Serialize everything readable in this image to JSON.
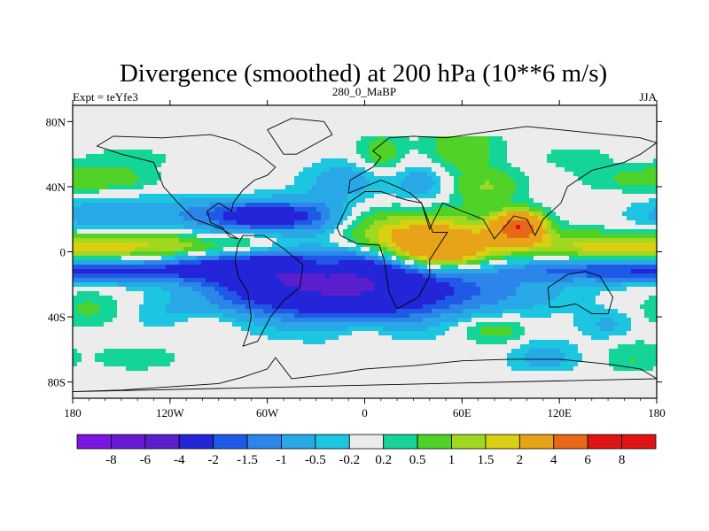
{
  "chart_data": {
    "type": "heatmap",
    "title": "Divergence (smoothed) at 200 hPa (10**6 m/s)",
    "subtitle_left": "Expt = teYfe3",
    "subtitle_center": "280_0_MaBP",
    "subtitle_right": "JJA",
    "x_ticks": [
      {
        "value": -180,
        "label": "180"
      },
      {
        "value": -120,
        "label": "120W"
      },
      {
        "value": -60,
        "label": "60W"
      },
      {
        "value": 0,
        "label": "0"
      },
      {
        "value": 60,
        "label": "60E"
      },
      {
        "value": 120,
        "label": "120E"
      },
      {
        "value": 180,
        "label": "180"
      }
    ],
    "y_ticks": [
      {
        "value": 80,
        "label": "80N"
      },
      {
        "value": 40,
        "label": "40N"
      },
      {
        "value": 0,
        "label": "0"
      },
      {
        "value": -40,
        "label": "40S"
      },
      {
        "value": -80,
        "label": "80S"
      }
    ],
    "xlim": [
      -180,
      180
    ],
    "ylim": [
      -90,
      90
    ],
    "colorbar": {
      "colors": [
        "#7a16e0",
        "#6a1ad6",
        "#5a1ecc",
        "#2424d8",
        "#1e5ae6",
        "#2c86ea",
        "#28a8e6",
        "#1cc6e0",
        "#ececec",
        "#14d498",
        "#50d228",
        "#a0d820",
        "#d8d010",
        "#e8a418",
        "#e86818",
        "#e01414",
        "#e01414"
      ],
      "labels": [
        "-8",
        "-6",
        "-4",
        "-2",
        "-1.5",
        "-1",
        "-0.5",
        "-0.2",
        "0.2",
        "0.5",
        "1",
        "1.5",
        "2",
        "4",
        "6",
        "8"
      ]
    },
    "features": [
      {
        "lon": -110,
        "lat": 3,
        "value": 1.5,
        "sx": 55,
        "sy": 6
      },
      {
        "lon": 150,
        "lat": 3,
        "value": 1.5,
        "sx": 45,
        "sy": 6
      },
      {
        "lon": -150,
        "lat": -12,
        "value": -1.5,
        "sx": 40,
        "sy": 5
      },
      {
        "lon": 140,
        "lat": -11,
        "value": -1.5,
        "sx": 45,
        "sy": 5
      },
      {
        "lon": -120,
        "lat": 23,
        "value": -0.8,
        "sx": 35,
        "sy": 8
      },
      {
        "lon": -170,
        "lat": 22,
        "value": -0.5,
        "sx": 20,
        "sy": 8
      },
      {
        "lon": -65,
        "lat": 22,
        "value": -2.5,
        "sx": 22,
        "sy": 6
      },
      {
        "lon": -30,
        "lat": 20,
        "value": -1.2,
        "sx": 18,
        "sy": 10
      },
      {
        "lon": -50,
        "lat": -18,
        "value": -3.0,
        "sx": 35,
        "sy": 14
      },
      {
        "lon": 5,
        "lat": -20,
        "value": -3.0,
        "sx": 35,
        "sy": 16
      },
      {
        "lon": -90,
        "lat": -8,
        "value": -1.4,
        "sx": 30,
        "sy": 6
      },
      {
        "lon": 70,
        "lat": -25,
        "value": -1.0,
        "sx": 40,
        "sy": 10
      },
      {
        "lon": -155,
        "lat": 45,
        "value": 0.6,
        "sx": 20,
        "sy": 6
      },
      {
        "lon": 170,
        "lat": 45,
        "value": 0.6,
        "sx": 25,
        "sy": 6
      },
      {
        "lon": -145,
        "lat": 58,
        "value": 0.4,
        "sx": 18,
        "sy": 4
      },
      {
        "lon": 130,
        "lat": 58,
        "value": 0.4,
        "sx": 15,
        "sy": 5
      },
      {
        "lon": -10,
        "lat": 45,
        "value": -0.8,
        "sx": 18,
        "sy": 8
      },
      {
        "lon": 30,
        "lat": 10,
        "value": 2.2,
        "sx": 40,
        "sy": 10
      },
      {
        "lon": 45,
        "lat": 0,
        "value": 3.0,
        "sx": 20,
        "sy": 8
      },
      {
        "lon": 95,
        "lat": 15,
        "value": 5.5,
        "sx": 10,
        "sy": 6
      },
      {
        "lon": 10,
        "lat": 60,
        "value": 0.8,
        "sx": 10,
        "sy": 10
      },
      {
        "lon": 60,
        "lat": 65,
        "value": 1.0,
        "sx": 15,
        "sy": 10
      },
      {
        "lon": 35,
        "lat": 42,
        "value": -0.8,
        "sx": 12,
        "sy": 8
      },
      {
        "lon": 75,
        "lat": 40,
        "value": 1.0,
        "sx": 15,
        "sy": 8
      },
      {
        "lon": -170,
        "lat": -35,
        "value": 0.6,
        "sx": 15,
        "sy": 8
      },
      {
        "lon": -100,
        "lat": -45,
        "value": 0.6,
        "sx": 15,
        "sy": 6
      },
      {
        "lon": -115,
        "lat": -40,
        "value": -0.5,
        "sx": 20,
        "sy": 8
      },
      {
        "lon": 0,
        "lat": -50,
        "value": 0.5,
        "sx": 12,
        "sy": 6
      },
      {
        "lon": 80,
        "lat": -48,
        "value": 0.8,
        "sx": 15,
        "sy": 6
      },
      {
        "lon": 110,
        "lat": -65,
        "value": -0.7,
        "sx": 15,
        "sy": 8
      },
      {
        "lon": -140,
        "lat": -65,
        "value": 0.4,
        "sx": 20,
        "sy": 6
      },
      {
        "lon": 150,
        "lat": -45,
        "value": -0.6,
        "sx": 12,
        "sy": 6
      },
      {
        "lon": -95,
        "lat": 8,
        "value": -0.4,
        "sx": 10,
        "sy": 5
      },
      {
        "lon": -25,
        "lat": -8,
        "value": 1.2,
        "sx": 10,
        "sy": 4
      },
      {
        "lon": 165,
        "lat": -65,
        "value": 0.5,
        "sx": 12,
        "sy": 8
      }
    ],
    "land_outlines": [
      {
        "name": "Antarctica",
        "points": [
          [
            -180,
            -86
          ],
          [
            -150,
            -85
          ],
          [
            -120,
            -83
          ],
          [
            -90,
            -81
          ],
          [
            -75,
            -77
          ],
          [
            -60,
            -72
          ],
          [
            -55,
            -65
          ],
          [
            -45,
            -78
          ],
          [
            -20,
            -75
          ],
          [
            0,
            -72
          ],
          [
            30,
            -70
          ],
          [
            60,
            -67
          ],
          [
            90,
            -66
          ],
          [
            120,
            -66
          ],
          [
            150,
            -69
          ],
          [
            170,
            -72
          ],
          [
            180,
            -78
          ]
        ]
      },
      {
        "name": "South America",
        "points": [
          [
            -75,
            -58
          ],
          [
            -72,
            -50
          ],
          [
            -70,
            -40
          ],
          [
            -72,
            -25
          ],
          [
            -78,
            -15
          ],
          [
            -80,
            -5
          ],
          [
            -78,
            5
          ],
          [
            -75,
            10
          ],
          [
            -62,
            10
          ],
          [
            -50,
            2
          ],
          [
            -38,
            -8
          ],
          [
            -40,
            -22
          ],
          [
            -50,
            -30
          ],
          [
            -58,
            -40
          ],
          [
            -66,
            -55
          ]
        ]
      },
      {
        "name": "Africa",
        "points": [
          [
            -17,
            15
          ],
          [
            -10,
            30
          ],
          [
            0,
            37
          ],
          [
            10,
            37
          ],
          [
            25,
            32
          ],
          [
            35,
            30
          ],
          [
            42,
            12
          ],
          [
            51,
            12
          ],
          [
            40,
            -5
          ],
          [
            40,
            -15
          ],
          [
            33,
            -28
          ],
          [
            20,
            -35
          ],
          [
            15,
            -25
          ],
          [
            12,
            -5
          ],
          [
            9,
            4
          ],
          [
            -5,
            5
          ],
          [
            -15,
            10
          ]
        ]
      },
      {
        "name": "Eurasia",
        "points": [
          [
            -10,
            36
          ],
          [
            -9,
            44
          ],
          [
            -2,
            48
          ],
          [
            5,
            52
          ],
          [
            10,
            58
          ],
          [
            5,
            62
          ],
          [
            15,
            70
          ],
          [
            30,
            71
          ],
          [
            50,
            70
          ],
          [
            70,
            73
          ],
          [
            100,
            77
          ],
          [
            140,
            73
          ],
          [
            170,
            70
          ],
          [
            180,
            67
          ],
          [
            170,
            60
          ],
          [
            160,
            55
          ],
          [
            140,
            50
          ],
          [
            125,
            40
          ],
          [
            121,
            30
          ],
          [
            110,
            20
          ],
          [
            105,
            10
          ],
          [
            100,
            20
          ],
          [
            92,
            22
          ],
          [
            80,
            8
          ],
          [
            73,
            20
          ],
          [
            60,
            25
          ],
          [
            48,
            30
          ],
          [
            40,
            14
          ],
          [
            35,
            30
          ],
          [
            28,
            36
          ],
          [
            20,
            40
          ],
          [
            10,
            44
          ],
          [
            0,
            40
          ]
        ]
      },
      {
        "name": "Australia",
        "points": [
          [
            113,
            -22
          ],
          [
            114,
            -34
          ],
          [
            120,
            -34
          ],
          [
            130,
            -32
          ],
          [
            140,
            -38
          ],
          [
            150,
            -38
          ],
          [
            153,
            -28
          ],
          [
            145,
            -15
          ],
          [
            136,
            -12
          ],
          [
            125,
            -14
          ]
        ]
      },
      {
        "name": "Greenland",
        "points": [
          [
            -50,
            60
          ],
          [
            -60,
            75
          ],
          [
            -45,
            82
          ],
          [
            -25,
            80
          ],
          [
            -20,
            72
          ],
          [
            -42,
            60
          ]
        ]
      },
      {
        "name": "North America",
        "points": [
          [
            -60,
            47
          ],
          [
            -68,
            44
          ],
          [
            -75,
            38
          ],
          [
            -81,
            30
          ],
          [
            -82,
            25
          ],
          [
            -90,
            30
          ],
          [
            -97,
            25
          ],
          [
            -95,
            18
          ],
          [
            -88,
            15
          ],
          [
            -83,
            9
          ],
          [
            -78,
            8
          ],
          [
            -88,
            14
          ],
          [
            -105,
            20
          ],
          [
            -115,
            30
          ],
          [
            -124,
            40
          ],
          [
            -130,
            55
          ],
          [
            -150,
            60
          ],
          [
            -165,
            65
          ],
          [
            -155,
            71
          ],
          [
            -125,
            70
          ],
          [
            -95,
            72
          ],
          [
            -80,
            68
          ],
          [
            -65,
            60
          ],
          [
            -55,
            52
          ]
        ]
      }
    ]
  }
}
